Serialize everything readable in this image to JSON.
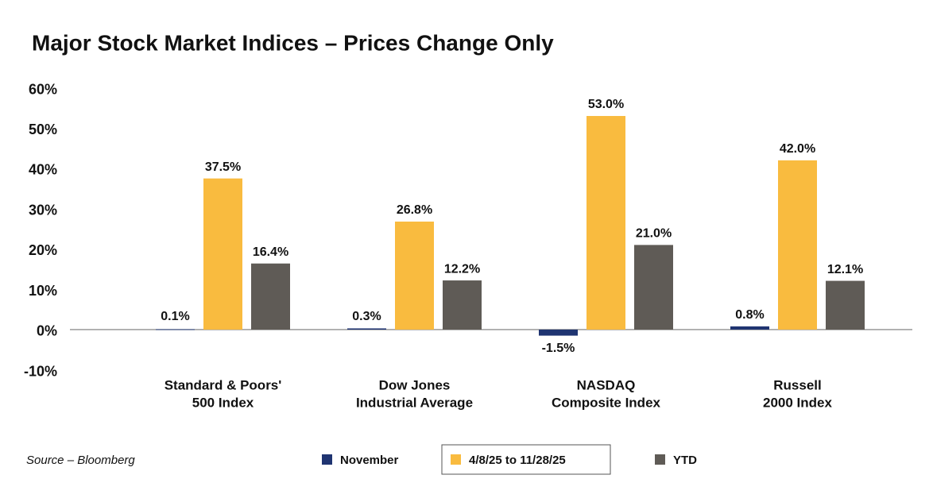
{
  "chart_data": {
    "type": "bar",
    "title": "Major Stock Market Indices – Prices Change Only",
    "categories": [
      [
        "Standard & Poors'",
        "500 Index"
      ],
      [
        "Dow Jones",
        "Industrial Average"
      ],
      [
        "NASDAQ",
        "Composite Index"
      ],
      [
        "Russell",
        "2000 Index"
      ]
    ],
    "series": [
      {
        "name": "November",
        "color": "#1f3471",
        "values": [
          0.1,
          0.3,
          -1.5,
          0.8
        ],
        "value_labels": [
          "0.1%",
          "0.3%",
          "-1.5%",
          "0.8%"
        ]
      },
      {
        "name": "4/8/25 to 11/28/25",
        "color": "#f9bb3f",
        "values": [
          37.5,
          26.8,
          53.0,
          42.0
        ],
        "value_labels": [
          "37.5%",
          "26.8%",
          "53.0%",
          "42.0%"
        ]
      },
      {
        "name": "YTD",
        "color": "#5f5b56",
        "values": [
          16.4,
          12.2,
          21.0,
          12.1
        ],
        "value_labels": [
          "16.4%",
          "12.2%",
          "21.0%",
          "12.1%"
        ]
      }
    ],
    "ylim": [
      -10,
      60
    ],
    "yticks": [
      {
        "value": -10,
        "label": "-10%"
      },
      {
        "value": 0,
        "label": "0%"
      },
      {
        "value": 10,
        "label": "10%"
      },
      {
        "value": 20,
        "label": "20%"
      },
      {
        "value": 30,
        "label": "30%"
      },
      {
        "value": 40,
        "label": "40%"
      },
      {
        "value": 50,
        "label": "50%"
      },
      {
        "value": 60,
        "label": "60%"
      }
    ],
    "grid": false,
    "legend": "bottom",
    "source": "Source – Bloomberg"
  }
}
